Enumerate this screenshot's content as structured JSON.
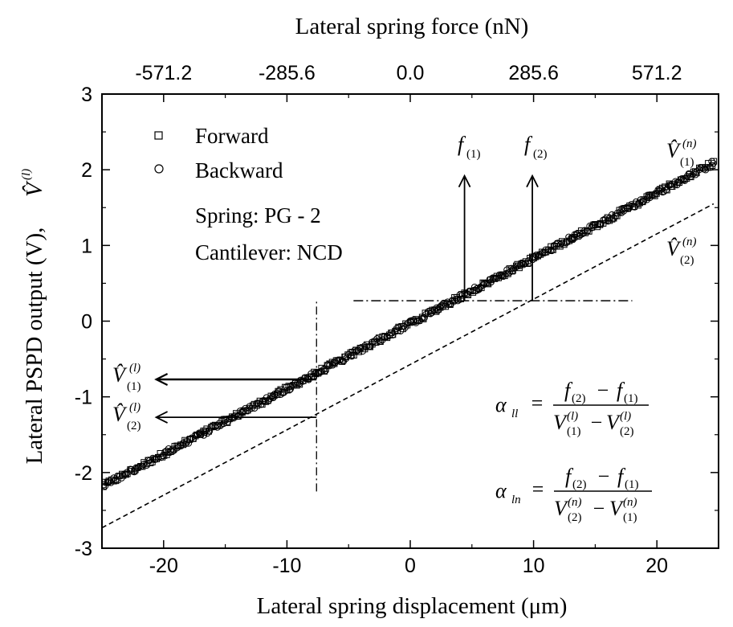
{
  "chart_data": {
    "type": "scatter",
    "title": "",
    "xlabel": "Lateral spring displacement (μm)",
    "ylabel": "Lateral PSPD output (V),",
    "ylabel_symbol": "V̂",
    "ylabel_superscript": "(l)",
    "x2label": "Lateral spring force (nN)",
    "xlim": [
      -25,
      25
    ],
    "ylim": [
      -3,
      3
    ],
    "x2lim": [
      -714,
      714
    ],
    "xticks": [
      "-20",
      "-10",
      "0",
      "10",
      "20"
    ],
    "xtick_values": [
      -20,
      -10,
      0,
      10,
      20
    ],
    "yticks": [
      "3",
      "2",
      "1",
      "0",
      "-1",
      "-2",
      "-3"
    ],
    "ytick_values": [
      3,
      2,
      1,
      0,
      -1,
      -2,
      -3
    ],
    "x2ticks": [
      "-571.2",
      "-285.6",
      "0.0",
      "285.6",
      "571.2"
    ],
    "x2tick_values": [
      -571.2,
      -285.6,
      0.0,
      285.6,
      571.2
    ],
    "grid": false,
    "legend_position": "top-left",
    "series": [
      {
        "name": "Forward",
        "marker": "square",
        "fit": {
          "slope": 0.0862,
          "intercept": -0.03
        },
        "x_range": [
          -24.9,
          24.6
        ],
        "point_count": 300
      },
      {
        "name": "Backward",
        "marker": "circle",
        "fit": {
          "slope": 0.0862,
          "intercept": -0.03
        },
        "x_range": [
          -24.9,
          24.6
        ],
        "point_count": 300
      }
    ],
    "reference_line": {
      "style": "dashed",
      "x": [
        -25,
        24.6
      ],
      "y": [
        -2.73,
        1.55
      ]
    },
    "notes": [
      "Spring: PG - 2",
      "Cantilever: NCD"
    ],
    "horizontal_dashdot": {
      "y": 0.27,
      "x": [
        -4.6,
        18.0
      ]
    },
    "vertical_dashdot": {
      "x": -7.6,
      "y": [
        -2.25,
        0.27
      ]
    },
    "force_arrows": [
      {
        "label": "f",
        "sub": "(1)",
        "x": 4.4,
        "y_from": 0.27,
        "y_to": 1.92
      },
      {
        "label": "f",
        "sub": "(2)",
        "x": 9.9,
        "y_from": 0.27,
        "y_to": 1.92
      }
    ],
    "voltage_arrows": [
      {
        "label": "V̂",
        "sub": "(1)",
        "sup": "(l)",
        "y": -0.77,
        "x_from": -7.6,
        "x_to": -20.6
      },
      {
        "label": "V̂",
        "sub": "(2)",
        "sup": "(l)",
        "y": -1.27,
        "x_from": -7.6,
        "x_to": -20.6
      }
    ],
    "line_labels": [
      {
        "label": "V̂",
        "sub": "(1)",
        "sup": "(n)"
      },
      {
        "label": "V̂",
        "sub": "(2)",
        "sup": "(n)"
      }
    ],
    "formulas": [
      {
        "lhs": "α",
        "lhs_sub": "ll",
        "num": [
          "f",
          "(2)",
          "−",
          "f",
          "(1)"
        ],
        "den": [
          "V",
          "(1)",
          "(l)",
          "−",
          "V",
          "(2)",
          "(l)"
        ]
      },
      {
        "lhs": "α",
        "lhs_sub": "ln",
        "num": [
          "f",
          "(2)",
          "−",
          "f",
          "(1)"
        ],
        "den": [
          "V",
          "(2)",
          "(n)",
          "−",
          "V",
          "(1)",
          "(n)"
        ]
      }
    ]
  }
}
